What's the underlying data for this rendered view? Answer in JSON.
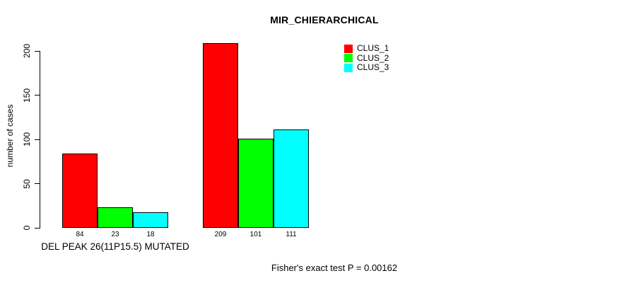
{
  "title": "MIR_CHIERARCHICAL",
  "footer_note": "Fisher's exact test P = 0.00162",
  "chart_data": {
    "type": "bar",
    "title": "MIR_CHIERARCHICAL",
    "xlabel": "",
    "ylabel": "number of cases",
    "ylim": [
      0,
      200
    ],
    "yticks": [
      0,
      50,
      100,
      150,
      200
    ],
    "grid": false,
    "legend_position": "top-right",
    "categories": [
      "DEL PEAK 26(11P15.5) MUTATED",
      ""
    ],
    "series": [
      {
        "name": "CLUS_1",
        "color": "#ff0000",
        "values": [
          84,
          209
        ]
      },
      {
        "name": "CLUS_2",
        "color": "#00ff00",
        "values": [
          23,
          101
        ]
      },
      {
        "name": "CLUS_3",
        "color": "#00ffff",
        "values": [
          18,
          111
        ]
      }
    ],
    "bar_value_labels": true,
    "annotation": "Fisher's exact test P = 0.00162"
  },
  "colors": {
    "background": "#ffffff",
    "axis": "#000000",
    "text": "#000000"
  }
}
